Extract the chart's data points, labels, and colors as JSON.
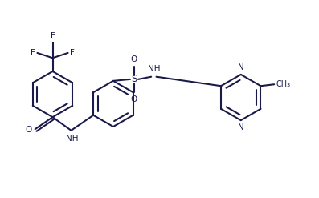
{
  "bg_color": "#ffffff",
  "line_color": "#1a1a4a",
  "line_width": 1.5,
  "font_size": 7.5,
  "figsize": [
    3.97,
    2.47
  ],
  "dpi": 100,
  "xlim": [
    0,
    10
  ],
  "ylim": [
    0,
    6.2
  ]
}
